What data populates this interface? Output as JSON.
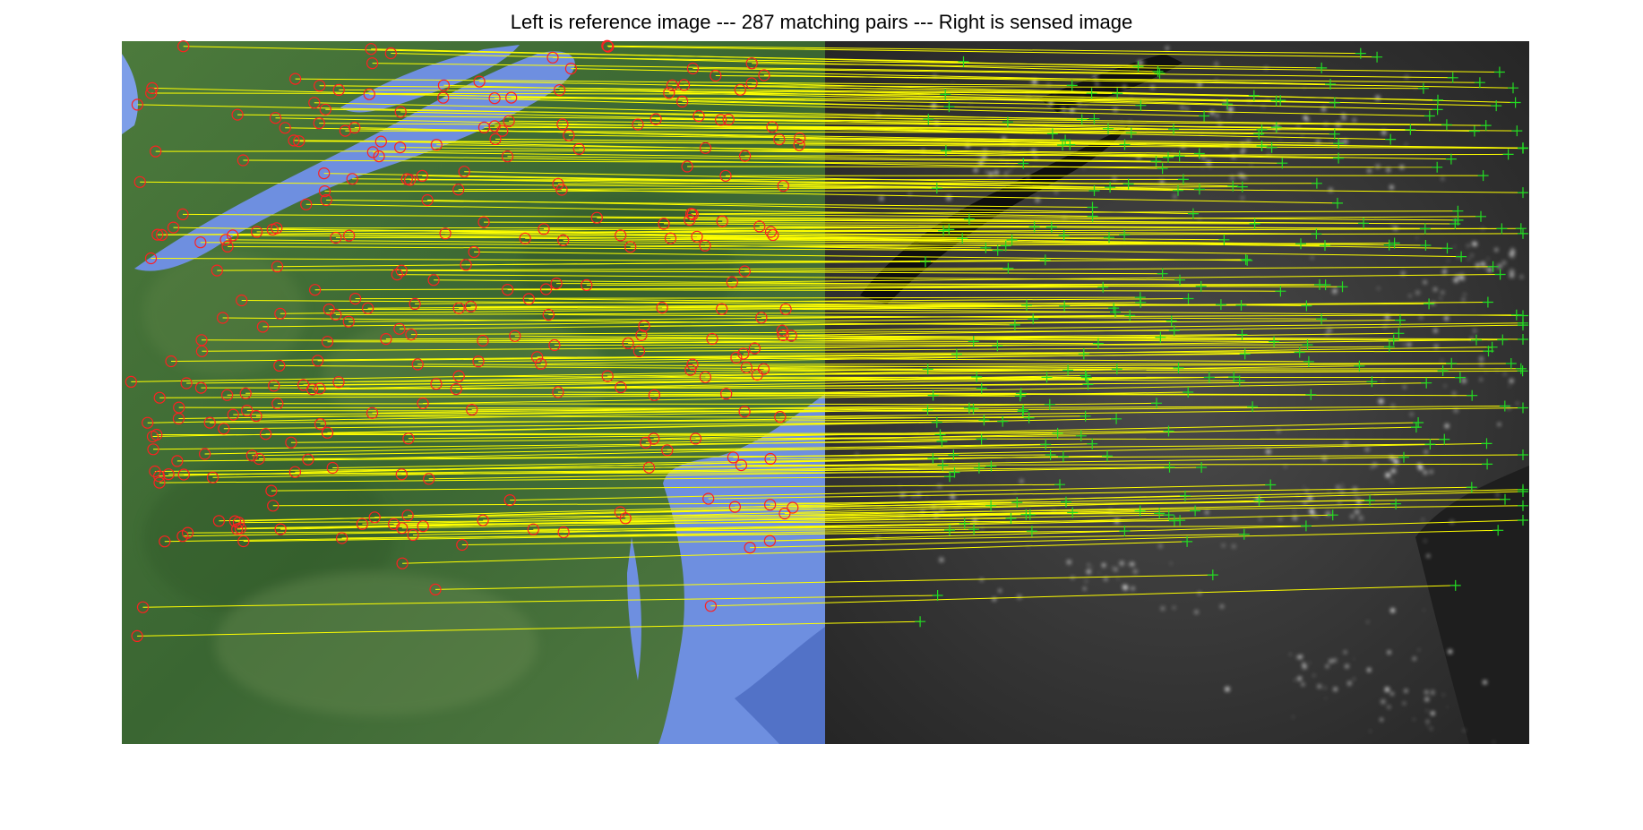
{
  "figure": {
    "title": "Left is reference image --- 287 matching pairs --- Right is sensed image",
    "pair_count": 287,
    "left_image": "reference satellite map (daytime, green land / blue water)",
    "right_image": "sensed satellite image (night lights, grayscale)"
  },
  "colors": {
    "background": "#ffffff",
    "match_line": "#ffff00",
    "reference_marker": "#ff2020",
    "sensed_marker": "#22dd22",
    "land_green": "#3f6b34",
    "water_blue": "#6e8fe0",
    "night_dark": "#2a2a2a"
  },
  "markers": {
    "reference_shape": "circle",
    "sensed_shape": "plus"
  }
}
